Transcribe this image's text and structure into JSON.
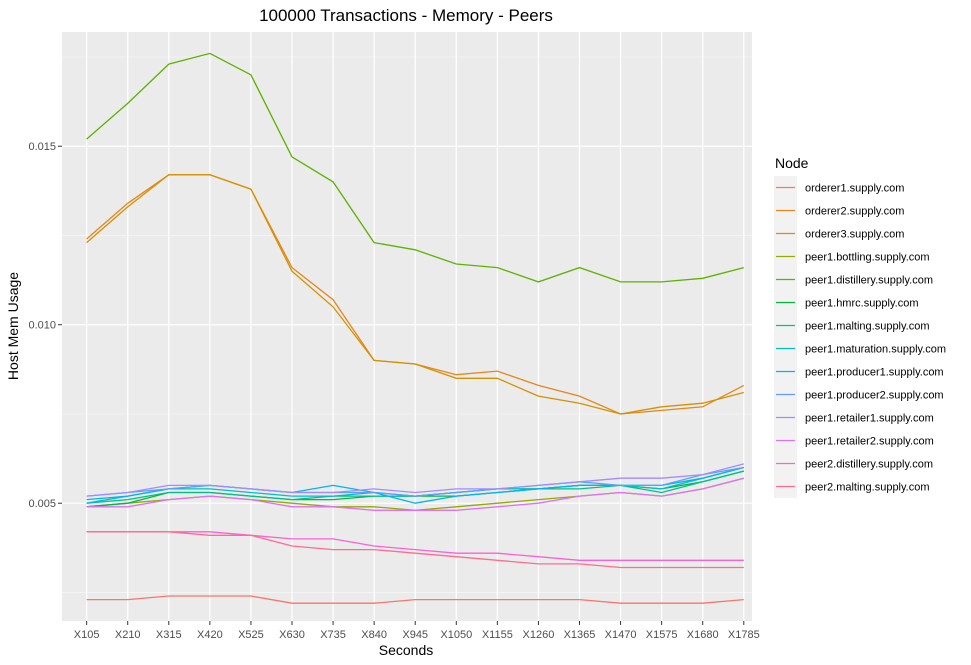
{
  "chart_data": {
    "type": "line",
    "title": "100000 Transactions - Memory - Peers",
    "xlabel": "Seconds",
    "ylabel": "Host Mem Usage",
    "categories": [
      "X105",
      "X210",
      "X315",
      "X420",
      "X525",
      "X630",
      "X735",
      "X840",
      "X945",
      "X1050",
      "X1155",
      "X1260",
      "X1365",
      "X1470",
      "X1575",
      "X1680",
      "X1785"
    ],
    "yticks": [
      0.005,
      0.01,
      0.015
    ],
    "ytick_labels": [
      "0.005",
      "0.010",
      "0.015"
    ],
    "ylim": [
      0.0017,
      0.0182
    ],
    "grid": true,
    "legend": {
      "title": "Node",
      "position": "right"
    },
    "series": [
      {
        "name": "orderer1.supply.com",
        "color": "#F8766D",
        "values": [
          0.0023,
          0.0023,
          0.0024,
          0.0024,
          0.0024,
          0.0022,
          0.0022,
          0.0022,
          0.0023,
          0.0023,
          0.0023,
          0.0023,
          0.0023,
          0.0022,
          0.0022,
          0.0022,
          0.0023
        ]
      },
      {
        "name": "orderer2.supply.com",
        "color": "#E7861B",
        "values": [
          0.0124,
          0.0134,
          0.0142,
          0.0142,
          0.0138,
          0.0116,
          0.0107,
          0.009,
          0.0089,
          0.0086,
          0.0087,
          0.0083,
          0.008,
          0.0075,
          0.0076,
          0.0077,
          0.0083
        ]
      },
      {
        "name": "orderer3.supply.com",
        "color": "#D39200",
        "values": [
          0.0123,
          0.0133,
          0.0142,
          0.0142,
          0.0138,
          0.0115,
          0.0105,
          0.009,
          0.0089,
          0.0085,
          0.0085,
          0.008,
          0.0078,
          0.0075,
          0.0077,
          0.0078,
          0.0081
        ]
      },
      {
        "name": "peer1.bottling.supply.com",
        "color": "#93AA00",
        "values": [
          0.0049,
          0.005,
          0.0051,
          0.0052,
          0.0051,
          0.005,
          0.0049,
          0.0049,
          0.0048,
          0.0049,
          0.005,
          0.0051,
          0.0052,
          0.0053,
          0.0052,
          0.0054,
          0.0057
        ]
      },
      {
        "name": "peer1.distillery.supply.com",
        "color": "#5BB300",
        "values": [
          0.0152,
          0.0162,
          0.0173,
          0.0176,
          0.017,
          0.0147,
          0.014,
          0.0123,
          0.0121,
          0.0117,
          0.0116,
          0.0112,
          0.0116,
          0.0112,
          0.0112,
          0.0113,
          0.0116
        ]
      },
      {
        "name": "peer1.hmrc.supply.com",
        "color": "#00BA38",
        "values": [
          0.0049,
          0.005,
          0.0053,
          0.0053,
          0.0052,
          0.0051,
          0.0051,
          0.0052,
          0.0052,
          0.0052,
          0.0053,
          0.0054,
          0.0055,
          0.0055,
          0.0054,
          0.0056,
          0.0059
        ]
      },
      {
        "name": "peer1.malting.supply.com",
        "color": "#00C08B",
        "values": [
          0.005,
          0.0051,
          0.0053,
          0.0053,
          0.0052,
          0.0051,
          0.0052,
          0.0052,
          0.0052,
          0.0053,
          0.0054,
          0.0054,
          0.0054,
          0.0055,
          0.0053,
          0.0056,
          0.0059
        ]
      },
      {
        "name": "peer1.maturation.supply.com",
        "color": "#00BFC4",
        "values": [
          0.005,
          0.0052,
          0.0054,
          0.0054,
          0.0053,
          0.0052,
          0.0052,
          0.0053,
          0.0052,
          0.0053,
          0.0054,
          0.0054,
          0.0055,
          0.0055,
          0.0054,
          0.0057,
          0.006
        ]
      },
      {
        "name": "peer1.producer1.supply.com",
        "color": "#00B4F0",
        "values": [
          0.0051,
          0.0052,
          0.0054,
          0.0055,
          0.0054,
          0.0053,
          0.0055,
          0.0053,
          0.005,
          0.0052,
          0.0053,
          0.0054,
          0.0055,
          0.0055,
          0.0055,
          0.0057,
          0.006
        ]
      },
      {
        "name": "peer1.producer2.supply.com",
        "color": "#619CFF",
        "values": [
          0.0052,
          0.0053,
          0.0054,
          0.0055,
          0.0054,
          0.0053,
          0.0053,
          0.0053,
          0.0052,
          0.0053,
          0.0054,
          0.0055,
          0.0056,
          0.0055,
          0.0055,
          0.0058,
          0.006
        ]
      },
      {
        "name": "peer1.retailer1.supply.com",
        "color": "#A58AFF",
        "values": [
          0.0052,
          0.0053,
          0.0055,
          0.0055,
          0.0054,
          0.0053,
          0.0053,
          0.0054,
          0.0053,
          0.0054,
          0.0054,
          0.0055,
          0.0056,
          0.0057,
          0.0057,
          0.0058,
          0.0061
        ]
      },
      {
        "name": "peer1.retailer2.supply.com",
        "color": "#DF70F8",
        "values": [
          0.0049,
          0.0049,
          0.0051,
          0.0052,
          0.0051,
          0.0049,
          0.0049,
          0.0048,
          0.0048,
          0.0048,
          0.0049,
          0.005,
          0.0052,
          0.0053,
          0.0052,
          0.0054,
          0.0057
        ]
      },
      {
        "name": "peer2.distillery.supply.com",
        "color": "#FB61D7",
        "values": [
          0.0042,
          0.0042,
          0.0042,
          0.0042,
          0.0041,
          0.004,
          0.004,
          0.0038,
          0.0037,
          0.0036,
          0.0036,
          0.0035,
          0.0034,
          0.0034,
          0.0034,
          0.0034,
          0.0034
        ]
      },
      {
        "name": "peer2.malting.supply.com",
        "color": "#FF6C91",
        "values": [
          0.0042,
          0.0042,
          0.0042,
          0.0041,
          0.0041,
          0.0038,
          0.0037,
          0.0037,
          0.0036,
          0.0035,
          0.0034,
          0.0033,
          0.0033,
          0.0032,
          0.0032,
          0.0032,
          0.0032
        ]
      }
    ]
  },
  "colors": {
    "panel_background": "#EBEBEB",
    "grid_major": "#FFFFFF",
    "tick_text": "#4D4D4D"
  }
}
